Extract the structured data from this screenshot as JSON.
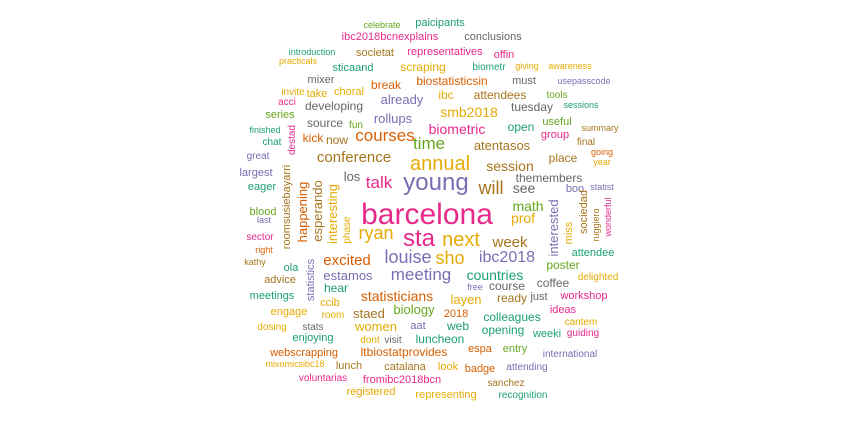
{
  "palette": {
    "teal": "#1b9e77",
    "orange": "#d95f02",
    "purple": "#7570b3",
    "pink": "#e7298a",
    "green": "#66a61e",
    "gold": "#e6ab02",
    "brown": "#a6761d",
    "gray": "#666666"
  },
  "words": [
    {
      "text": "barcelona",
      "color": "pink"
    },
    {
      "text": "young",
      "color": "purple"
    },
    {
      "text": "sta",
      "color": "pink"
    },
    {
      "text": "next",
      "color": "gold"
    },
    {
      "text": "annual",
      "color": "gold"
    },
    {
      "text": "louise",
      "color": "purple"
    },
    {
      "text": "sho",
      "color": "gold"
    },
    {
      "text": "ibc2018",
      "color": "purple"
    },
    {
      "text": "meeting",
      "color": "purple"
    },
    {
      "text": "talk",
      "color": "pink"
    },
    {
      "text": "will",
      "color": "brown"
    },
    {
      "text": "ryan",
      "color": "gold"
    },
    {
      "text": "time",
      "color": "green"
    },
    {
      "text": "courses",
      "color": "orange"
    },
    {
      "text": "conference",
      "color": "brown"
    },
    {
      "text": "week",
      "color": "brown"
    },
    {
      "text": "excited",
      "color": "orange"
    },
    {
      "text": "statisticians",
      "color": "orange"
    },
    {
      "text": "countries",
      "color": "teal"
    },
    {
      "text": "session",
      "color": "brown"
    },
    {
      "text": "smb2018",
      "color": "gold"
    },
    {
      "text": "biometric",
      "color": "pink"
    },
    {
      "text": "math",
      "color": "green"
    },
    {
      "text": "prof",
      "color": "gold"
    },
    {
      "text": "see",
      "color": "gray"
    },
    {
      "text": "estamos",
      "color": "purple"
    },
    {
      "text": "layen",
      "color": "gold"
    },
    {
      "text": "biology",
      "color": "green"
    },
    {
      "text": "women",
      "color": "gold"
    },
    {
      "text": "staed",
      "color": "brown"
    },
    {
      "text": "rollups",
      "color": "purple"
    },
    {
      "text": "already",
      "color": "purple"
    },
    {
      "text": "atentasos",
      "color": "brown"
    },
    {
      "text": "interested",
      "color": "purple"
    },
    {
      "text": "happening",
      "color": "orange"
    },
    {
      "text": "esperando",
      "color": "brown"
    },
    {
      "text": "interesting",
      "color": "gold"
    },
    {
      "text": "los",
      "color": "gray"
    },
    {
      "text": "course",
      "color": "gray"
    },
    {
      "text": "coffee",
      "color": "gray"
    },
    {
      "text": "colleagues",
      "color": "teal"
    },
    {
      "text": "luncheon",
      "color": "teal"
    },
    {
      "text": "opening",
      "color": "teal"
    },
    {
      "text": "web",
      "color": "teal"
    },
    {
      "text": "ready",
      "color": "brown"
    },
    {
      "text": "hear",
      "color": "teal"
    },
    {
      "text": "poster",
      "color": "green"
    },
    {
      "text": "place",
      "color": "brown"
    },
    {
      "text": "themembers",
      "color": "gray"
    },
    {
      "text": "open",
      "color": "teal"
    },
    {
      "text": "tuesday",
      "color": "gray"
    },
    {
      "text": "attendees",
      "color": "brown"
    },
    {
      "text": "ibc",
      "color": "gold"
    },
    {
      "text": "biostatisticsin",
      "color": "orange"
    },
    {
      "text": "break",
      "color": "orange"
    },
    {
      "text": "scraping",
      "color": "gold"
    },
    {
      "text": "developing",
      "color": "gray"
    },
    {
      "text": "source",
      "color": "gray"
    },
    {
      "text": "now",
      "color": "brown"
    },
    {
      "text": "kick",
      "color": "orange"
    },
    {
      "text": "ltbiostatprovides",
      "color": "orange"
    },
    {
      "text": "webscrapping",
      "color": "orange"
    },
    {
      "text": "fromibc2018bcn",
      "color": "pink"
    },
    {
      "text": "representing",
      "color": "gold"
    },
    {
      "text": "registered",
      "color": "gold"
    },
    {
      "text": "catalana",
      "color": "brown"
    },
    {
      "text": "lunch",
      "color": "brown"
    },
    {
      "text": "look",
      "color": "gold"
    },
    {
      "text": "badge",
      "color": "orange"
    },
    {
      "text": "sanchez",
      "color": "brown"
    },
    {
      "text": "recognition",
      "color": "teal"
    },
    {
      "text": "attending",
      "color": "purple"
    },
    {
      "text": "international",
      "color": "purple"
    },
    {
      "text": "entry",
      "color": "green"
    },
    {
      "text": "espa",
      "color": "orange"
    },
    {
      "text": "weeki",
      "color": "teal"
    },
    {
      "text": "guiding",
      "color": "pink"
    },
    {
      "text": "cantem",
      "color": "gold"
    },
    {
      "text": "ideas",
      "color": "pink"
    },
    {
      "text": "workshop",
      "color": "pink"
    },
    {
      "text": "delighted",
      "color": "gold"
    },
    {
      "text": "just",
      "color": "gray"
    },
    {
      "text": "free",
      "color": "purple"
    },
    {
      "text": "2018",
      "color": "orange"
    },
    {
      "text": "aat",
      "color": "purple"
    },
    {
      "text": "visit",
      "color": "gray"
    },
    {
      "text": "dont",
      "color": "gold"
    },
    {
      "text": "stats",
      "color": "gray"
    },
    {
      "text": "enjoying",
      "color": "teal"
    },
    {
      "text": "dosing",
      "color": "gold"
    },
    {
      "text": "engage",
      "color": "gold"
    },
    {
      "text": "room",
      "color": "gold"
    },
    {
      "text": "ccib",
      "color": "gold"
    },
    {
      "text": "meetings",
      "color": "teal"
    },
    {
      "text": "advice",
      "color": "brown"
    },
    {
      "text": "kathy",
      "color": "brown"
    },
    {
      "text": "ola",
      "color": "teal"
    },
    {
      "text": "statistics",
      "color": "purple"
    },
    {
      "text": "sector",
      "color": "pink"
    },
    {
      "text": "blood",
      "color": "green"
    },
    {
      "text": "eager",
      "color": "teal"
    },
    {
      "text": "largest",
      "color": "purple"
    },
    {
      "text": "roomsusiebayarri",
      "color": "brown"
    },
    {
      "text": "great",
      "color": "purple"
    },
    {
      "text": "destad",
      "color": "pink"
    },
    {
      "text": "chat",
      "color": "teal"
    },
    {
      "text": "finished",
      "color": "teal"
    },
    {
      "text": "series",
      "color": "green"
    },
    {
      "text": "acci",
      "color": "pink"
    },
    {
      "text": "invite",
      "color": "gold"
    },
    {
      "text": "fun",
      "color": "green"
    },
    {
      "text": "take",
      "color": "gold"
    },
    {
      "text": "choral",
      "color": "gold"
    },
    {
      "text": "mixer",
      "color": "gray"
    },
    {
      "text": "sticaand",
      "color": "teal"
    },
    {
      "text": "practicals",
      "color": "gold"
    },
    {
      "text": "introduction",
      "color": "teal"
    },
    {
      "text": "societat",
      "color": "brown"
    },
    {
      "text": "representatives",
      "color": "pink"
    },
    {
      "text": "ibc2018bcnexplains",
      "color": "pink"
    },
    {
      "text": "conclusions",
      "color": "gray"
    },
    {
      "text": "celebrate",
      "color": "green"
    },
    {
      "text": "paicipants",
      "color": "teal"
    },
    {
      "text": "offin",
      "color": "pink"
    },
    {
      "text": "giving",
      "color": "gold"
    },
    {
      "text": "awareness",
      "color": "gold"
    },
    {
      "text": "biometr",
      "color": "teal"
    },
    {
      "text": "must",
      "color": "gray"
    },
    {
      "text": "usepasscode",
      "color": "purple"
    },
    {
      "text": "tools",
      "color": "green"
    },
    {
      "text": "sessions",
      "color": "teal"
    },
    {
      "text": "useful",
      "color": "green"
    },
    {
      "text": "group",
      "color": "pink"
    },
    {
      "text": "summary",
      "color": "brown"
    },
    {
      "text": "final",
      "color": "brown"
    },
    {
      "text": "going",
      "color": "orange"
    },
    {
      "text": "year",
      "color": "gold"
    },
    {
      "text": "boo",
      "color": "purple"
    },
    {
      "text": "statist",
      "color": "purple"
    },
    {
      "text": "sociedad",
      "color": "brown"
    },
    {
      "text": "miss",
      "color": "gold"
    },
    {
      "text": "ruggiero",
      "color": "brown"
    },
    {
      "text": "wonderful",
      "color": "pink"
    },
    {
      "text": "attendee",
      "color": "teal"
    },
    {
      "text": "right",
      "color": "orange"
    },
    {
      "text": "phase",
      "color": "gold"
    },
    {
      "text": "last",
      "color": "purple"
    },
    {
      "text": "mixomicsibc18",
      "color": "gold"
    },
    {
      "text": "voluntarias",
      "color": "pink"
    }
  ]
}
